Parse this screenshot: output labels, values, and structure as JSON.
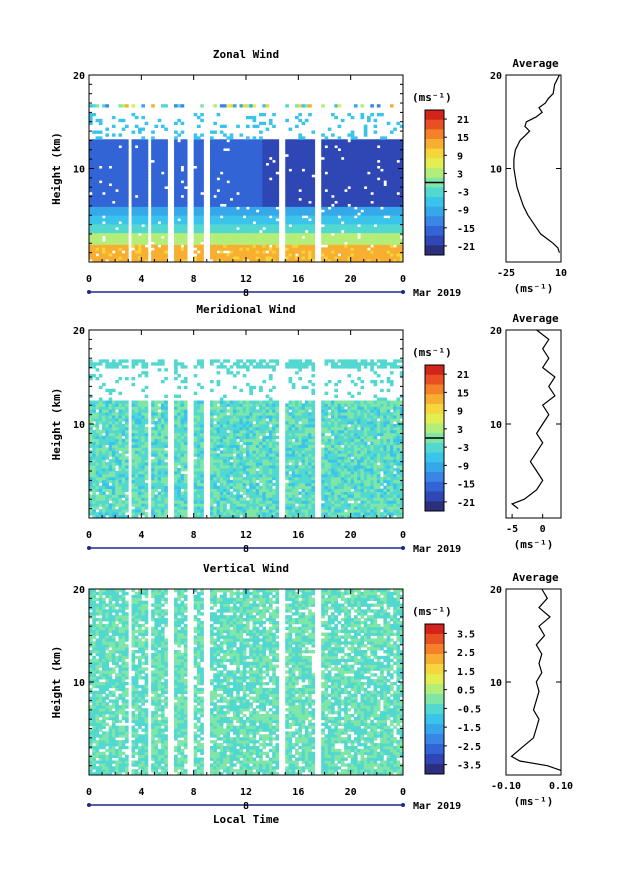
{
  "chart_data": [
    {
      "type": "heatmap",
      "title": "Zonal Wind",
      "ylabel": "Height (km)",
      "xlim": [
        0,
        24
      ],
      "ylim": [
        0,
        20
      ],
      "x_ticks": [
        "0",
        "4",
        "8",
        "12",
        "16",
        "20",
        "0"
      ],
      "y_ticks": [
        "20",
        "10"
      ],
      "date_label": "8",
      "month_label": "Mar 2019",
      "colorbar": {
        "unit": "(ms⁻¹)",
        "ticks": [
          "21",
          "15",
          "9",
          "3",
          "-3",
          "-9",
          "-15",
          "-21"
        ],
        "range": [
          -24,
          24
        ],
        "zero_line": 0
      },
      "coverage_top_km": 17,
      "gaps_hours": [
        3.1,
        4.6,
        6.2,
        7.7,
        9.0,
        14.7,
        17.5
      ],
      "profile": {
        "title": "Average",
        "xlabel": "(ms⁻¹)",
        "x_ticks": [
          "-25",
          "10"
        ],
        "xlim": [
          -25,
          10
        ],
        "y_ticks": [
          "20",
          "10"
        ],
        "ylim": [
          0,
          20
        ],
        "points": [
          [
            9,
            1
          ],
          [
            8,
            1.5
          ],
          [
            5,
            2
          ],
          [
            1,
            2.5
          ],
          [
            -3,
            3
          ],
          [
            -7,
            4
          ],
          [
            -11,
            5
          ],
          [
            -14,
            6
          ],
          [
            -16,
            7
          ],
          [
            -18,
            8
          ],
          [
            -19,
            9
          ],
          [
            -20,
            10
          ],
          [
            -20,
            11
          ],
          [
            -19,
            12
          ],
          [
            -16,
            13
          ],
          [
            -13,
            13.5
          ],
          [
            -10,
            14
          ],
          [
            -13,
            14.5
          ],
          [
            -12,
            15
          ],
          [
            -6,
            15.5
          ],
          [
            -2,
            16
          ],
          [
            -4,
            16.5
          ],
          [
            0,
            17
          ],
          [
            2,
            17.5
          ],
          [
            5,
            18
          ],
          [
            6,
            19
          ],
          [
            9,
            20
          ]
        ]
      }
    },
    {
      "type": "heatmap",
      "title": "Meridional Wind",
      "ylabel": "Height (km)",
      "xlim": [
        0,
        24
      ],
      "ylim": [
        0,
        20
      ],
      "x_ticks": [
        "0",
        "4",
        "8",
        "12",
        "16",
        "20",
        "0"
      ],
      "y_ticks": [
        "20",
        "10"
      ],
      "date_label": "8",
      "month_label": "Mar 2019",
      "colorbar": {
        "unit": "(ms⁻¹)",
        "ticks": [
          "21",
          "15",
          "9",
          "3",
          "-3",
          "-9",
          "-15",
          "-21"
        ],
        "range": [
          -24,
          24
        ],
        "zero_line": 0
      },
      "coverage_top_km": 17,
      "gaps_hours": [
        3.1,
        4.6,
        6.2,
        7.7,
        9.0,
        14.7,
        17.5
      ],
      "profile": {
        "title": "Average",
        "xlabel": "(ms⁻¹)",
        "x_ticks": [
          "-5",
          "0"
        ],
        "xlim": [
          -6,
          3
        ],
        "y_ticks": [
          "20",
          "10"
        ],
        "ylim": [
          0,
          20
        ],
        "points": [
          [
            -4,
            1
          ],
          [
            -5,
            1.5
          ],
          [
            -3,
            2
          ],
          [
            -1,
            3
          ],
          [
            0,
            4
          ],
          [
            -1,
            5
          ],
          [
            -2,
            6
          ],
          [
            -1,
            7
          ],
          [
            0,
            8
          ],
          [
            -1,
            9
          ],
          [
            0,
            10
          ],
          [
            1,
            11
          ],
          [
            0,
            12
          ],
          [
            2,
            13
          ],
          [
            1,
            14
          ],
          [
            2,
            15
          ],
          [
            0,
            16
          ],
          [
            1,
            17
          ],
          [
            0,
            18
          ],
          [
            1,
            19
          ],
          [
            -1,
            20
          ]
        ]
      }
    },
    {
      "type": "heatmap",
      "title": "Vertical Wind",
      "ylabel": "Height (km)",
      "xlabel": "Local Time",
      "xlim": [
        0,
        24
      ],
      "ylim": [
        0,
        20
      ],
      "x_ticks": [
        "0",
        "4",
        "8",
        "12",
        "16",
        "20",
        "0"
      ],
      "y_ticks": [
        "20",
        "10"
      ],
      "date_label": "8",
      "month_label": "Mar 2019",
      "colorbar": {
        "unit": "(ms⁻¹)",
        "ticks": [
          "3.5",
          "2.5",
          "1.5",
          "0.5",
          "-0.5",
          "-1.5",
          "-2.5",
          "-3.5"
        ],
        "range": [
          -4,
          4
        ]
      },
      "coverage_top_km": 20,
      "gaps_hours": [
        3.1,
        4.6,
        6.2,
        7.7,
        9.0,
        14.7,
        17.5
      ],
      "profile": {
        "title": "Average",
        "xlabel": "(ms⁻¹)",
        "x_ticks": [
          "-0.10",
          "0.10"
        ],
        "xlim": [
          -0.1,
          0.1
        ],
        "y_ticks": [
          "20",
          "10"
        ],
        "ylim": [
          0,
          20
        ],
        "points": [
          [
            0.1,
            0.5
          ],
          [
            0.05,
            1
          ],
          [
            -0.05,
            1.5
          ],
          [
            -0.08,
            2
          ],
          [
            -0.04,
            3
          ],
          [
            0.0,
            4
          ],
          [
            0.01,
            5
          ],
          [
            0.02,
            6
          ],
          [
            0.0,
            7
          ],
          [
            0.01,
            8
          ],
          [
            0.02,
            9
          ],
          [
            0.01,
            10
          ],
          [
            0.03,
            11
          ],
          [
            0.02,
            12
          ],
          [
            0.03,
            13
          ],
          [
            0.01,
            14
          ],
          [
            0.04,
            15
          ],
          [
            0.02,
            16
          ],
          [
            0.06,
            17
          ],
          [
            0.02,
            18
          ],
          [
            0.05,
            19
          ],
          [
            0.03,
            20
          ]
        ]
      }
    }
  ]
}
